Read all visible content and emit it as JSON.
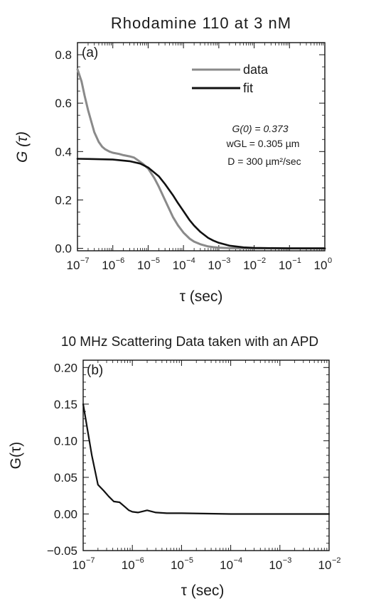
{
  "chart_data": [
    {
      "type": "line",
      "title": "Rhodamine 110 at 3 nM",
      "panel_label": "(a)",
      "xlabel": "τ (sec)",
      "ylabel": "G (τ)",
      "xscale": "log",
      "xlim": [
        1e-07,
        1
      ],
      "ylim": [
        -0.01,
        0.85
      ],
      "grid": false,
      "legend_position": "top-right",
      "x_tick_labels": [
        "10-7",
        "10-6",
        "10-5",
        "10-4",
        "10-3",
        "10-2",
        "10-1",
        "100"
      ],
      "y_tick_labels": [
        "0.0",
        "0.2",
        "0.4",
        "0.6",
        "0.8"
      ],
      "annotations": [
        "G(0) = 0.373",
        "wGL = 0.305 µm",
        "D = 300 µm²/sec"
      ],
      "series": [
        {
          "name": "data",
          "color": "#8a8a8a",
          "x": [
            1e-07,
            1.3e-07,
            1.6e-07,
            2e-07,
            2.5e-07,
            3e-07,
            4e-07,
            5e-07,
            6e-07,
            8e-07,
            1e-06,
            1.5e-06,
            2e-06,
            3e-06,
            4e-06,
            5e-06,
            7e-06,
            1e-05,
            1.5e-05,
            2e-05,
            3e-05,
            5e-05,
            7e-05,
            0.0001,
            0.00015,
            0.0002,
            0.0003,
            0.0005,
            0.0007,
            0.001,
            0.002,
            0.005,
            0.01,
            0.1,
            1
          ],
          "y": [
            0.74,
            0.69,
            0.63,
            0.57,
            0.52,
            0.48,
            0.44,
            0.42,
            0.41,
            0.4,
            0.395,
            0.39,
            0.385,
            0.38,
            0.375,
            0.365,
            0.35,
            0.33,
            0.29,
            0.255,
            0.2,
            0.13,
            0.095,
            0.065,
            0.04,
            0.028,
            0.017,
            0.008,
            0.005,
            0.003,
            0.001,
            0.0,
            0.0,
            0.0,
            0.0
          ]
        },
        {
          "name": "fit",
          "color": "#111111",
          "x": [
            1e-07,
            3e-07,
            1e-06,
            3e-06,
            6e-06,
            1e-05,
            2e-05,
            3e-05,
            5e-05,
            7e-05,
            0.0001,
            0.00015,
            0.0002,
            0.0003,
            0.0005,
            0.0007,
            0.001,
            0.002,
            0.005,
            0.01,
            0.1,
            1
          ],
          "y": [
            0.37,
            0.369,
            0.367,
            0.36,
            0.35,
            0.334,
            0.298,
            0.266,
            0.22,
            0.187,
            0.154,
            0.116,
            0.094,
            0.068,
            0.043,
            0.032,
            0.023,
            0.011,
            0.004,
            0.002,
            0.0,
            0.0
          ]
        }
      ]
    },
    {
      "type": "line",
      "title": "10 MHz Scattering Data taken with an APD",
      "panel_label": "(b)",
      "xlabel": "τ (sec)",
      "ylabel": "G(τ)",
      "xscale": "log",
      "xlim": [
        1e-07,
        0.01
      ],
      "ylim": [
        -0.05,
        0.21
      ],
      "grid": false,
      "x_tick_labels": [
        "10-7",
        "10-6",
        "10-5",
        "10-4",
        "10-3",
        "10-2"
      ],
      "y_tick_labels": [
        "-0.05",
        "0.00",
        "0.05",
        "0.10",
        "0.15",
        "0.20"
      ],
      "series": [
        {
          "color": "#111111",
          "x": [
            1e-07,
            1.5e-07,
            2e-07,
            2.6e-07,
            3.3e-07,
            4.2e-07,
            5.5e-07,
            7e-07,
            8.5e-07,
            1e-06,
            1.3e-06,
            2e-06,
            3e-06,
            5e-06,
            1e-05,
            0.0001,
            0.001,
            0.01
          ],
          "y": [
            0.15,
            0.08,
            0.04,
            0.032,
            0.024,
            0.017,
            0.016,
            0.01,
            0.005,
            0.003,
            0.002,
            0.005,
            0.002,
            0.001,
            0.001,
            0.0,
            0.0,
            0.0
          ]
        }
      ]
    }
  ]
}
